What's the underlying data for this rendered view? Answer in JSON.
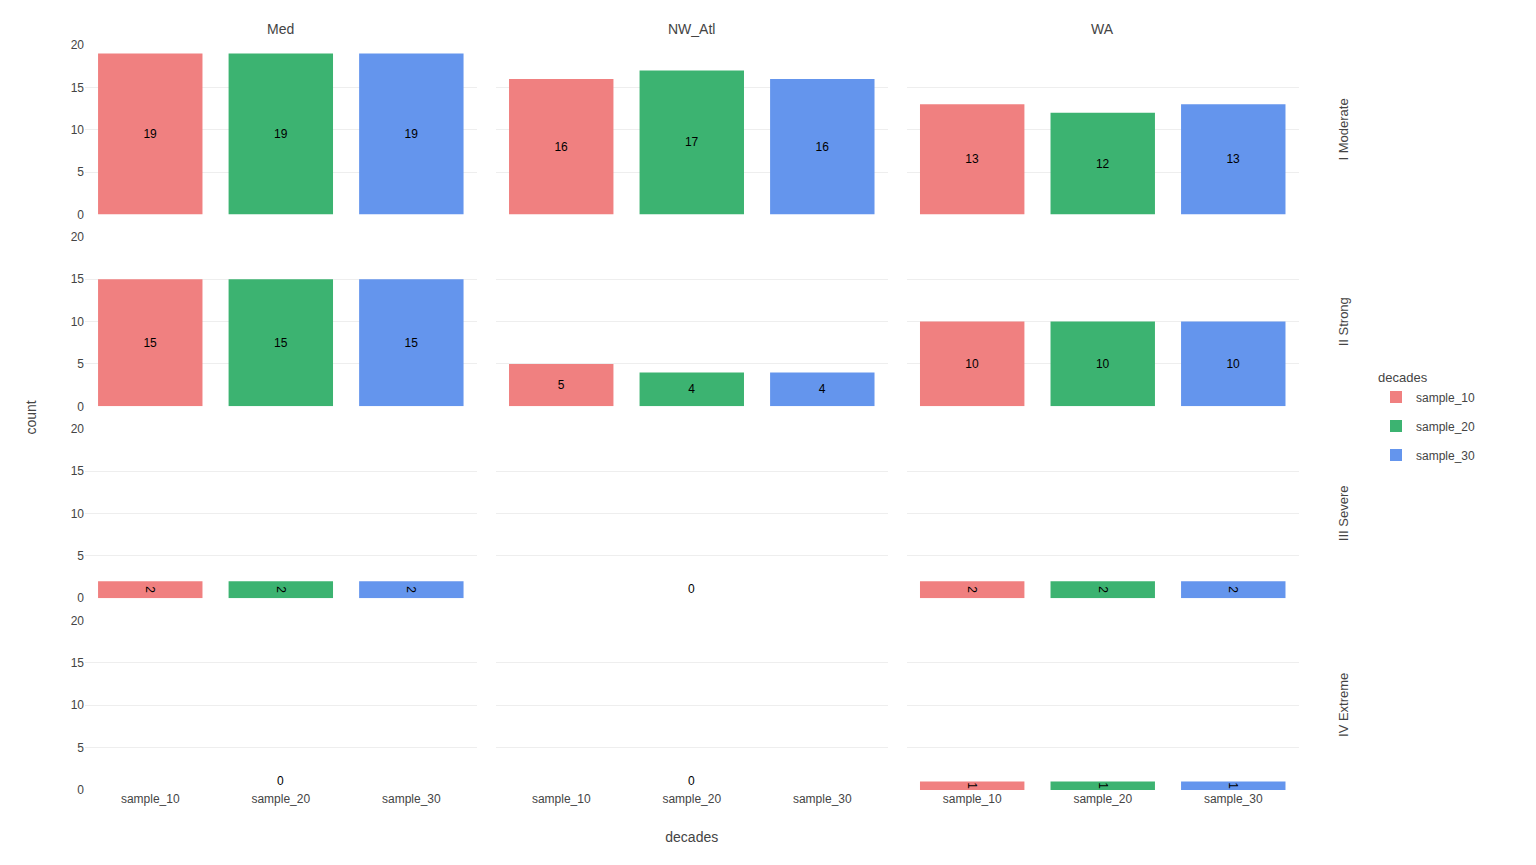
{
  "chart_data": [
    {
      "type": "bar",
      "title": "Med",
      "categories": [
        "sample_10",
        "sample_20",
        "sample_30"
      ],
      "values": [
        19,
        19,
        19
      ],
      "colors": [
        "#F08080",
        "#3CB371",
        "#6495ED"
      ],
      "ylim": [
        0,
        20
      ],
      "yticks": [
        0,
        5,
        10,
        15,
        20
      ],
      "grid": true,
      "data_labels": true,
      "tick_labels": "y",
      "legend": "right",
      "legend_title": "decades"
    },
    {
      "type": "bar",
      "title": "NW_Atl",
      "categories": [
        "sample_10",
        "sample_20",
        "sample_30"
      ],
      "values": [
        16,
        17,
        16
      ],
      "colors": [
        "#F08080",
        "#3CB371",
        "#6495ED"
      ],
      "ylim": [
        0,
        20
      ],
      "yticks": [
        0,
        5,
        10,
        15,
        20
      ],
      "grid": true,
      "data_labels": true,
      "tick_labels": false
    },
    {
      "type": "bar",
      "title": "WA",
      "categories": [
        "sample_10",
        "sample_20",
        "sample_30"
      ],
      "values": [
        13,
        12,
        13
      ],
      "colors": [
        "#F08080",
        "#3CB371",
        "#6495ED"
      ],
      "ylim": [
        0,
        20
      ],
      "yticks": [
        0,
        5,
        10,
        15,
        20
      ],
      "grid": true,
      "data_labels": true,
      "tick_labels": false,
      "annotations": [
        "I Moderate"
      ]
    },
    {
      "type": "bar",
      "categories": [
        "sample_10",
        "sample_20",
        "sample_30"
      ],
      "values": [
        15,
        15,
        15
      ],
      "colors": [
        "#F08080",
        "#3CB371",
        "#6495ED"
      ],
      "ylim": [
        0,
        20
      ],
      "yticks": [
        0,
        5,
        10,
        15,
        20
      ],
      "grid": true,
      "data_labels": true,
      "tick_labels": "y",
      "ylabel": "count"
    },
    {
      "type": "bar",
      "categories": [
        "sample_10",
        "sample_20",
        "sample_30"
      ],
      "values": [
        5,
        4,
        4
      ],
      "colors": [
        "#F08080",
        "#3CB371",
        "#6495ED"
      ],
      "ylim": [
        0,
        20
      ],
      "yticks": [
        0,
        5,
        10,
        15,
        20
      ],
      "grid": true,
      "data_labels": true,
      "tick_labels": false
    },
    {
      "type": "bar",
      "categories": [
        "sample_10",
        "sample_20",
        "sample_30"
      ],
      "values": [
        10,
        10,
        10
      ],
      "colors": [
        "#F08080",
        "#3CB371",
        "#6495ED"
      ],
      "ylim": [
        0,
        20
      ],
      "yticks": [
        0,
        5,
        10,
        15,
        20
      ],
      "grid": true,
      "data_labels": true,
      "tick_labels": false,
      "annotations": [
        "II Strong"
      ]
    },
    {
      "type": "bar",
      "categories": [
        "sample_10",
        "sample_20",
        "sample_30"
      ],
      "values": [
        2,
        2,
        2
      ],
      "colors": [
        "#F08080",
        "#3CB371",
        "#6495ED"
      ],
      "ylim": [
        0,
        20
      ],
      "yticks": [
        0,
        5,
        10,
        15,
        20
      ],
      "grid": true,
      "data_labels": true,
      "tick_labels": "y"
    },
    {
      "type": "bar",
      "categories": [
        "sample_10",
        "sample_20",
        "sample_30"
      ],
      "values": [
        0,
        0,
        0
      ],
      "colors": [
        "#F08080",
        "#3CB371",
        "#6495ED"
      ],
      "ylim": [
        0,
        20
      ],
      "yticks": [
        0,
        5,
        10,
        15,
        20
      ],
      "grid": true,
      "data_labels": true,
      "tick_labels": false
    },
    {
      "type": "bar",
      "categories": [
        "sample_10",
        "sample_20",
        "sample_30"
      ],
      "values": [
        2,
        2,
        2
      ],
      "colors": [
        "#F08080",
        "#3CB371",
        "#6495ED"
      ],
      "ylim": [
        0,
        20
      ],
      "yticks": [
        0,
        5,
        10,
        15,
        20
      ],
      "grid": true,
      "data_labels": true,
      "tick_labels": false,
      "annotations": [
        "III Severe"
      ]
    },
    {
      "type": "bar",
      "categories": [
        "sample_10",
        "sample_20",
        "sample_30"
      ],
      "values": [
        0,
        0,
        0
      ],
      "colors": [
        "#F08080",
        "#3CB371",
        "#6495ED"
      ],
      "ylim": [
        0,
        20
      ],
      "yticks": [
        0,
        5,
        10,
        15,
        20
      ],
      "grid": true,
      "data_labels": true
    },
    {
      "type": "bar",
      "categories": [
        "sample_10",
        "sample_20",
        "sample_30"
      ],
      "values": [
        0,
        0,
        0
      ],
      "colors": [
        "#F08080",
        "#3CB371",
        "#6495ED"
      ],
      "ylim": [
        0,
        20
      ],
      "yticks": [
        0,
        5,
        10,
        15,
        20
      ],
      "grid": true,
      "data_labels": true,
      "tick_labels": "x",
      "xlabel": "decades"
    },
    {
      "type": "bar",
      "categories": [
        "sample_10",
        "sample_20",
        "sample_30"
      ],
      "values": [
        1,
        1,
        1
      ],
      "colors": [
        "#F08080",
        "#3CB371",
        "#6495ED"
      ],
      "ylim": [
        0,
        20
      ],
      "yticks": [
        0,
        5,
        10,
        15,
        20
      ],
      "grid": true,
      "data_labels": true,
      "tick_labels": "x",
      "annotations": [
        "IV Extreme"
      ]
    }
  ]
}
